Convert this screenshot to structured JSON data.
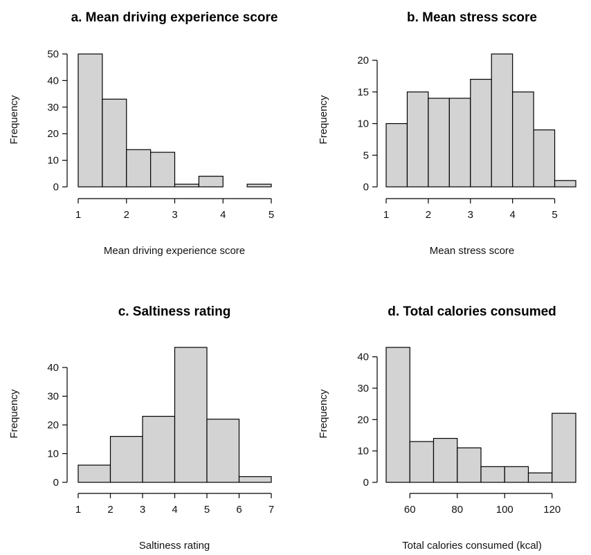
{
  "chart_data": [
    {
      "type": "bar",
      "title": "a. Mean driving experience score",
      "xlabel": "Mean driving experience score",
      "ylabel": "Frequency",
      "bin_edges": [
        1,
        1.5,
        2,
        2.5,
        3,
        3.5,
        4,
        4.5,
        5
      ],
      "values": [
        50,
        33,
        14,
        13,
        1,
        4,
        0,
        1
      ],
      "xlim": [
        1,
        5
      ],
      "ylim": [
        0,
        50
      ],
      "xticks": [
        1,
        2,
        3,
        4,
        5
      ],
      "yticks": [
        0,
        10,
        20,
        30,
        40,
        50
      ],
      "bar_color": "#d3d3d3",
      "grid": false
    },
    {
      "type": "bar",
      "title": "b. Mean stress score",
      "xlabel": "Mean stress score",
      "ylabel": "Frequency",
      "bin_edges": [
        1,
        1.5,
        2,
        2.5,
        3,
        3.5,
        4,
        4.5,
        5,
        5.5
      ],
      "values": [
        10,
        15,
        14,
        14,
        17,
        21,
        15,
        9,
        1
      ],
      "xlim": [
        1,
        5.5
      ],
      "ylim": [
        0,
        21
      ],
      "xticks": [
        1,
        2,
        3,
        4,
        5
      ],
      "yticks": [
        0,
        5,
        10,
        15,
        20
      ],
      "bar_color": "#d3d3d3",
      "grid": false
    },
    {
      "type": "bar",
      "title": "c. Saltiness rating",
      "xlabel": "Saltiness rating",
      "ylabel": "Frequency",
      "bin_edges": [
        1,
        2,
        3,
        4,
        5,
        6,
        7
      ],
      "values": [
        6,
        16,
        23,
        47,
        22,
        2
      ],
      "xlim": [
        1,
        7
      ],
      "ylim": [
        0,
        47
      ],
      "xticks": [
        1,
        2,
        3,
        4,
        5,
        6,
        7
      ],
      "yticks": [
        0,
        10,
        20,
        30,
        40
      ],
      "bar_color": "#d3d3d3",
      "grid": false
    },
    {
      "type": "bar",
      "title": "d. Total calories consumed",
      "xlabel": "Total calories consumed (kcal)",
      "ylabel": "Frequency",
      "bin_edges": [
        50,
        60,
        70,
        80,
        90,
        100,
        110,
        120,
        130
      ],
      "values": [
        43,
        13,
        14,
        11,
        5,
        5,
        3,
        22
      ],
      "xlim": [
        50,
        130
      ],
      "ylim": [
        0,
        43
      ],
      "xticks": [
        60,
        80,
        100,
        120
      ],
      "yticks": [
        0,
        10,
        20,
        30,
        40
      ],
      "bar_color": "#d3d3d3",
      "grid": false
    }
  ]
}
